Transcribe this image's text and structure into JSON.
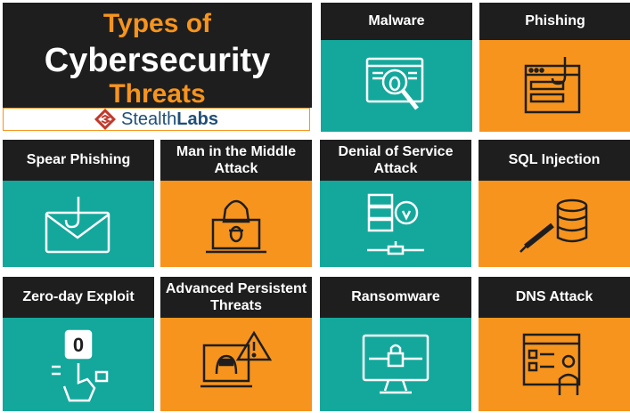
{
  "title": {
    "line1": "Types of",
    "line2": "Cybersecurity",
    "line3": "Threats"
  },
  "brand": {
    "name_light": "Stealth",
    "name_bold": "Labs",
    "logo_icon": "stealthlabs-logo-icon",
    "color": "#1f4e79"
  },
  "colors": {
    "dark": "#1e1e1e",
    "teal": "#14a89c",
    "orange": "#f7941d"
  },
  "cards": [
    {
      "label": "Malware",
      "icon": "bug-monitor-icon"
    },
    {
      "label": "Phishing",
      "icon": "phishing-hook-icon"
    },
    {
      "label": "Spear Phishing",
      "icon": "hooked-envelope-icon"
    },
    {
      "label": "Man in the Middle Attack",
      "icon": "hacker-laptop-icon"
    },
    {
      "label": "Denial of Service Attack",
      "icon": "server-network-icon"
    },
    {
      "label": "SQL Injection",
      "icon": "database-syringe-icon"
    },
    {
      "label": "Zero-day Exploit",
      "icon": "zero-day-hand-icon"
    },
    {
      "label": "Advanced Persistent Threats",
      "icon": "hacker-warning-icon"
    },
    {
      "label": "Ransomware",
      "icon": "locked-monitor-icon"
    },
    {
      "label": "DNS Attack",
      "icon": "dns-checklist-icon"
    }
  ]
}
